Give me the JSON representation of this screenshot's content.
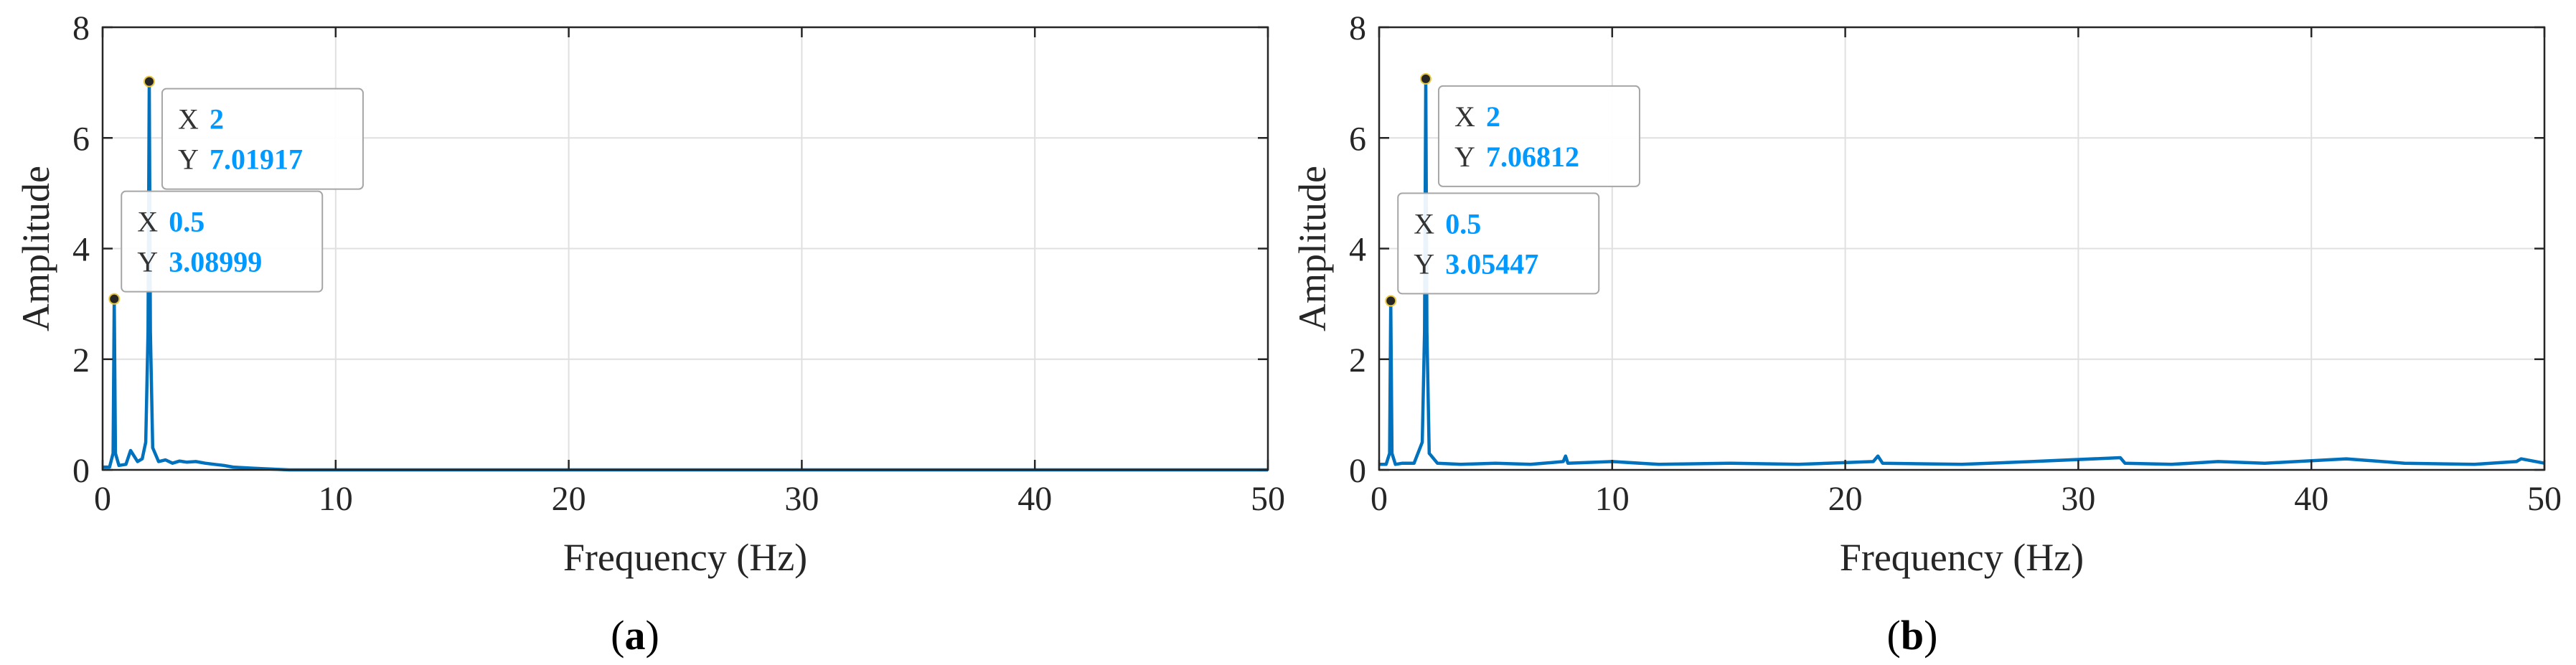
{
  "chart_data": [
    {
      "panel_label": "a",
      "type": "line",
      "xlabel": "Frequency (Hz)",
      "ylabel": "Amplitude",
      "xlim": [
        0,
        50
      ],
      "ylim": [
        0,
        8
      ],
      "xticks": [
        "0",
        "10",
        "20",
        "30",
        "40",
        "50"
      ],
      "yticks": [
        "0",
        "2",
        "4",
        "6",
        "8"
      ],
      "grid": true,
      "line_color": "#0072BD",
      "series": [
        {
          "x": [
            0,
            0.3,
            0.45,
            0.5,
            0.55,
            0.7,
            1.0,
            1.2,
            1.5,
            1.7,
            1.85,
            1.95,
            2.0,
            2.05,
            2.15,
            2.4,
            2.7,
            3.0,
            3.3,
            3.6,
            4.0,
            4.4,
            4.8,
            5.2,
            5.6,
            6.0,
            6.5,
            7.0,
            7.5,
            8.0,
            10,
            20,
            30,
            40,
            50
          ],
          "y": [
            0.05,
            0.05,
            0.3,
            3.09,
            0.3,
            0.08,
            0.1,
            0.35,
            0.15,
            0.2,
            0.5,
            2.5,
            7.02,
            2.5,
            0.4,
            0.15,
            0.18,
            0.12,
            0.16,
            0.14,
            0.15,
            0.12,
            0.1,
            0.08,
            0.05,
            0.04,
            0.03,
            0.02,
            0.01,
            0.0,
            0.0,
            0.0,
            0.0,
            0.0,
            0.0
          ]
        }
      ],
      "datatips": [
        {
          "x_label": "X",
          "x_value": "2",
          "y_label": "Y",
          "y_value": "7.01917",
          "px": 2,
          "py": 7.01917
        },
        {
          "x_label": "X",
          "x_value": "0.5",
          "y_label": "Y",
          "y_value": "3.08999",
          "px": 0.5,
          "py": 3.08999
        }
      ]
    },
    {
      "panel_label": "b",
      "type": "line",
      "xlabel": "Frequency (Hz)",
      "ylabel": "Amplitude",
      "xlim": [
        0,
        50
      ],
      "ylim": [
        0,
        8
      ],
      "xticks": [
        "0",
        "10",
        "20",
        "30",
        "40",
        "50"
      ],
      "yticks": [
        "0",
        "2",
        "4",
        "6",
        "8"
      ],
      "grid": true,
      "line_color": "#0072BD",
      "noise_floor": 0.1,
      "series": [
        {
          "x": [
            0,
            0.3,
            0.45,
            0.5,
            0.55,
            0.7,
            1.0,
            1.5,
            1.85,
            1.95,
            2.0,
            2.05,
            2.15,
            2.5,
            3.5,
            5,
            6.5,
            7.9,
            8.0,
            8.1,
            10,
            12,
            15,
            18,
            21.2,
            21.4,
            21.6,
            25,
            28,
            31.8,
            32,
            34,
            36,
            38,
            41.5,
            44,
            47,
            48.8,
            49,
            50
          ],
          "y": [
            0.1,
            0.1,
            0.3,
            3.05,
            0.3,
            0.1,
            0.12,
            0.12,
            0.5,
            2.5,
            7.07,
            2.5,
            0.3,
            0.12,
            0.1,
            0.12,
            0.1,
            0.15,
            0.25,
            0.12,
            0.15,
            0.1,
            0.12,
            0.1,
            0.15,
            0.25,
            0.12,
            0.1,
            0.15,
            0.22,
            0.12,
            0.1,
            0.15,
            0.12,
            0.2,
            0.12,
            0.1,
            0.15,
            0.2,
            0.12
          ]
        }
      ],
      "datatips": [
        {
          "x_label": "X",
          "x_value": "2",
          "y_label": "Y",
          "y_value": "7.06812",
          "px": 2,
          "py": 7.06812
        },
        {
          "x_label": "X",
          "x_value": "0.5",
          "y_label": "Y",
          "y_value": "3.05447",
          "px": 0.5,
          "py": 3.05447
        }
      ]
    }
  ],
  "colors": {
    "line": "#0072BD",
    "datatip_value": "#0099FF",
    "datatip_label": "#333333",
    "grid": "#e0e0e0",
    "axis": "#262626"
  }
}
